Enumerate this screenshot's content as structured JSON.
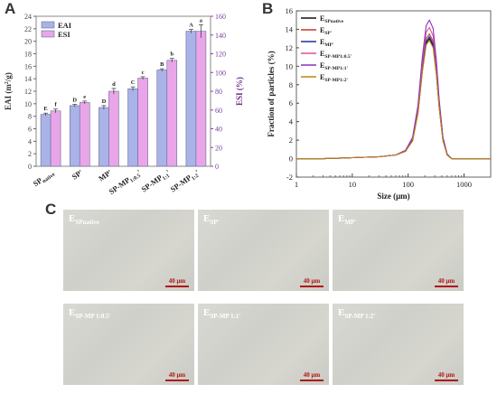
{
  "panels": {
    "a": "A",
    "b": "B",
    "c": "C"
  },
  "chart_data": [
    {
      "type": "bar",
      "categories": [
        "SP native",
        "SP'",
        "MP'",
        "SP-MP 1:0.5'",
        "SP-MP 1:1'",
        "SP-MP 1:2'"
      ],
      "category_labels": [
        {
          "main": "SP",
          "sub": "native",
          "prime": ""
        },
        {
          "main": "SP",
          "sub": "",
          "prime": "'"
        },
        {
          "main": "MP",
          "sub": "",
          "prime": "'"
        },
        {
          "main": "SP-MP",
          "sub": "1:0.5",
          "prime": "'"
        },
        {
          "main": "SP-MP",
          "sub": "1:1",
          "prime": "'"
        },
        {
          "main": "SP-MP",
          "sub": "1:2",
          "prime": "'"
        }
      ],
      "series": [
        {
          "name": "EAI",
          "axis": "left",
          "color": "#a9b3e8",
          "values": [
            8.3,
            9.7,
            9.4,
            12.4,
            15.4,
            21.6
          ],
          "errors": [
            0.2,
            0.2,
            0.3,
            0.3,
            0.2,
            0.3
          ],
          "letters": [
            "E",
            "D",
            "D",
            "C",
            "B",
            "A"
          ]
        },
        {
          "name": "ESI",
          "axis": "right",
          "color": "#e8a6e8",
          "values": [
            59,
            68,
            80,
            94,
            113,
            144
          ],
          "errors": [
            2,
            1.5,
            3,
            1.5,
            2,
            7
          ],
          "letters": [
            "f",
            "e",
            "d",
            "c",
            "b",
            "a"
          ]
        }
      ],
      "ylabel_left": {
        "main": "EAI (m",
        "sup": "2",
        "tail": "/g)"
      },
      "ylabel_right": "ESI (%)",
      "ylim_left": [
        0,
        24
      ],
      "ylim_right": [
        0,
        160
      ],
      "yticks_left": [
        0,
        2,
        4,
        6,
        8,
        10,
        12,
        14,
        16,
        18,
        20,
        22,
        24
      ],
      "yticks_right": [
        0,
        20,
        40,
        60,
        80,
        100,
        120,
        140,
        160
      ],
      "legend": "top-left"
    },
    {
      "type": "line",
      "xlabel": "Size (μm)",
      "ylabel": "Fraction of particles (%)",
      "xscale": "log",
      "xlim": [
        1,
        3000
      ],
      "ylim": [
        -2,
        16
      ],
      "xticks": [
        1,
        10,
        100,
        1000
      ],
      "xtick_labels": [
        "1",
        "10",
        "100",
        "1000"
      ],
      "yticks": [
        -2,
        0,
        2,
        4,
        6,
        8,
        10,
        12,
        14,
        16
      ],
      "legend": "top-left",
      "series": [
        {
          "name": "E_SPnative",
          "main": "E",
          "sub": "SPnative",
          "color": "#111111",
          "peak": 13.0,
          "x": [
            1,
            3,
            10,
            30,
            60,
            90,
            120,
            150,
            180,
            210,
            240,
            280,
            320,
            360,
            420,
            500,
            600,
            1000,
            3000
          ],
          "y": [
            0,
            0,
            0.1,
            0.2,
            0.4,
            0.8,
            2.0,
            5.0,
            9.5,
            12.5,
            13.0,
            12.2,
            9.2,
            5.5,
            2.0,
            0.4,
            0,
            0,
            0
          ]
        },
        {
          "name": "E_SP'",
          "main": "E",
          "sub": "SP'",
          "color": "#c0392b",
          "peak": 13.5,
          "x": [
            1,
            3,
            10,
            30,
            60,
            90,
            120,
            150,
            180,
            210,
            240,
            280,
            320,
            360,
            420,
            500,
            600,
            1000,
            3000
          ],
          "y": [
            0,
            0,
            0.1,
            0.2,
            0.4,
            0.8,
            2.1,
            5.2,
            9.9,
            13.0,
            13.5,
            12.7,
            9.6,
            5.7,
            2.1,
            0.4,
            0,
            0,
            0
          ]
        },
        {
          "name": "E_MP'",
          "main": "E",
          "sub": "MP'",
          "color": "#1a2ea8",
          "peak": 13.2,
          "x": [
            1,
            3,
            10,
            30,
            60,
            90,
            120,
            150,
            180,
            210,
            240,
            280,
            320,
            360,
            420,
            500,
            600,
            1000,
            3000
          ],
          "y": [
            0,
            0,
            0.1,
            0.2,
            0.4,
            0.8,
            2.0,
            5.1,
            9.7,
            12.7,
            13.2,
            12.4,
            9.4,
            5.6,
            2.0,
            0.4,
            0,
            0,
            0
          ]
        },
        {
          "name": "E_SP-MP1:0.5'",
          "main": "E",
          "sub": "SP-MP1:0.5'",
          "color": "#d4559f",
          "peak": 14.2,
          "x": [
            1,
            3,
            10,
            30,
            60,
            90,
            120,
            150,
            180,
            210,
            240,
            280,
            320,
            360,
            420,
            500,
            600,
            1000,
            3000
          ],
          "y": [
            0,
            0,
            0.1,
            0.2,
            0.4,
            0.9,
            2.2,
            5.5,
            10.4,
            13.7,
            14.2,
            13.3,
            10.1,
            6.0,
            2.2,
            0.4,
            0,
            0,
            0
          ]
        },
        {
          "name": "E_SP-MP1:1'",
          "main": "E",
          "sub": "SP-MP1:1'",
          "color": "#8e2ec4",
          "peak": 15.0,
          "x": [
            1,
            3,
            10,
            30,
            60,
            90,
            120,
            150,
            180,
            210,
            240,
            280,
            320,
            360,
            420,
            500,
            600,
            1000,
            3000
          ],
          "y": [
            0,
            0,
            0.1,
            0.2,
            0.4,
            0.9,
            2.3,
            5.8,
            11.0,
            14.4,
            15.0,
            14.1,
            10.6,
            6.3,
            2.3,
            0.5,
            0,
            0,
            0
          ]
        },
        {
          "name": "E_SP-MP1:2'",
          "main": "E",
          "sub": "SP-MP1:2'",
          "color": "#b8860b",
          "peak": 12.8,
          "x": [
            1,
            3,
            10,
            30,
            60,
            90,
            120,
            150,
            180,
            210,
            240,
            280,
            320,
            360,
            420,
            500,
            600,
            1000,
            3000
          ],
          "y": [
            0,
            0,
            0.1,
            0.2,
            0.4,
            0.8,
            1.9,
            4.9,
            9.4,
            12.3,
            12.8,
            12.0,
            9.1,
            5.4,
            1.9,
            0.4,
            0,
            0,
            0
          ]
        }
      ]
    }
  ],
  "micrographs": [
    {
      "main": "E",
      "sub": "SPnative",
      "scale": "40 μm"
    },
    {
      "main": "E",
      "sub": "SP'",
      "scale": "40 μm"
    },
    {
      "main": "E",
      "sub": "MP'",
      "scale": "40 μm"
    },
    {
      "main": "E",
      "sub": "SP-MP 1:0.5'",
      "scale": "40 μm"
    },
    {
      "main": "E",
      "sub": "SP-MP 1:1'",
      "scale": "40 μm"
    },
    {
      "main": "E",
      "sub": "SP-MP 1:2'",
      "scale": "40 μm"
    }
  ]
}
